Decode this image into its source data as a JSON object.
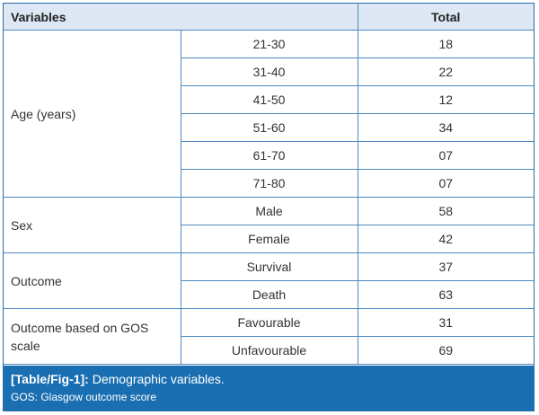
{
  "table": {
    "headers": {
      "variables": "Variables",
      "total": "Total"
    },
    "groups": [
      {
        "label": "Age (years)",
        "rows": [
          {
            "sub": "21-30",
            "total": "18"
          },
          {
            "sub": "31-40",
            "total": "22"
          },
          {
            "sub": "41-50",
            "total": "12"
          },
          {
            "sub": "51-60",
            "total": "34"
          },
          {
            "sub": "61-70",
            "total": "07"
          },
          {
            "sub": "71-80",
            "total": "07"
          }
        ]
      },
      {
        "label": "Sex",
        "rows": [
          {
            "sub": "Male",
            "total": "58"
          },
          {
            "sub": "Female",
            "total": "42"
          }
        ]
      },
      {
        "label": "Outcome",
        "rows": [
          {
            "sub": "Survival",
            "total": "37"
          },
          {
            "sub": "Death",
            "total": "63"
          }
        ]
      },
      {
        "label": "Outcome based on GOS scale",
        "rows": [
          {
            "sub": "Favourable",
            "total": "31"
          },
          {
            "sub": "Unfavourable",
            "total": "69"
          }
        ]
      }
    ]
  },
  "caption": {
    "ref": "[Table/Fig-1]:",
    "title": "Demographic variables.",
    "note": "GOS: Glasgow outcome score"
  }
}
